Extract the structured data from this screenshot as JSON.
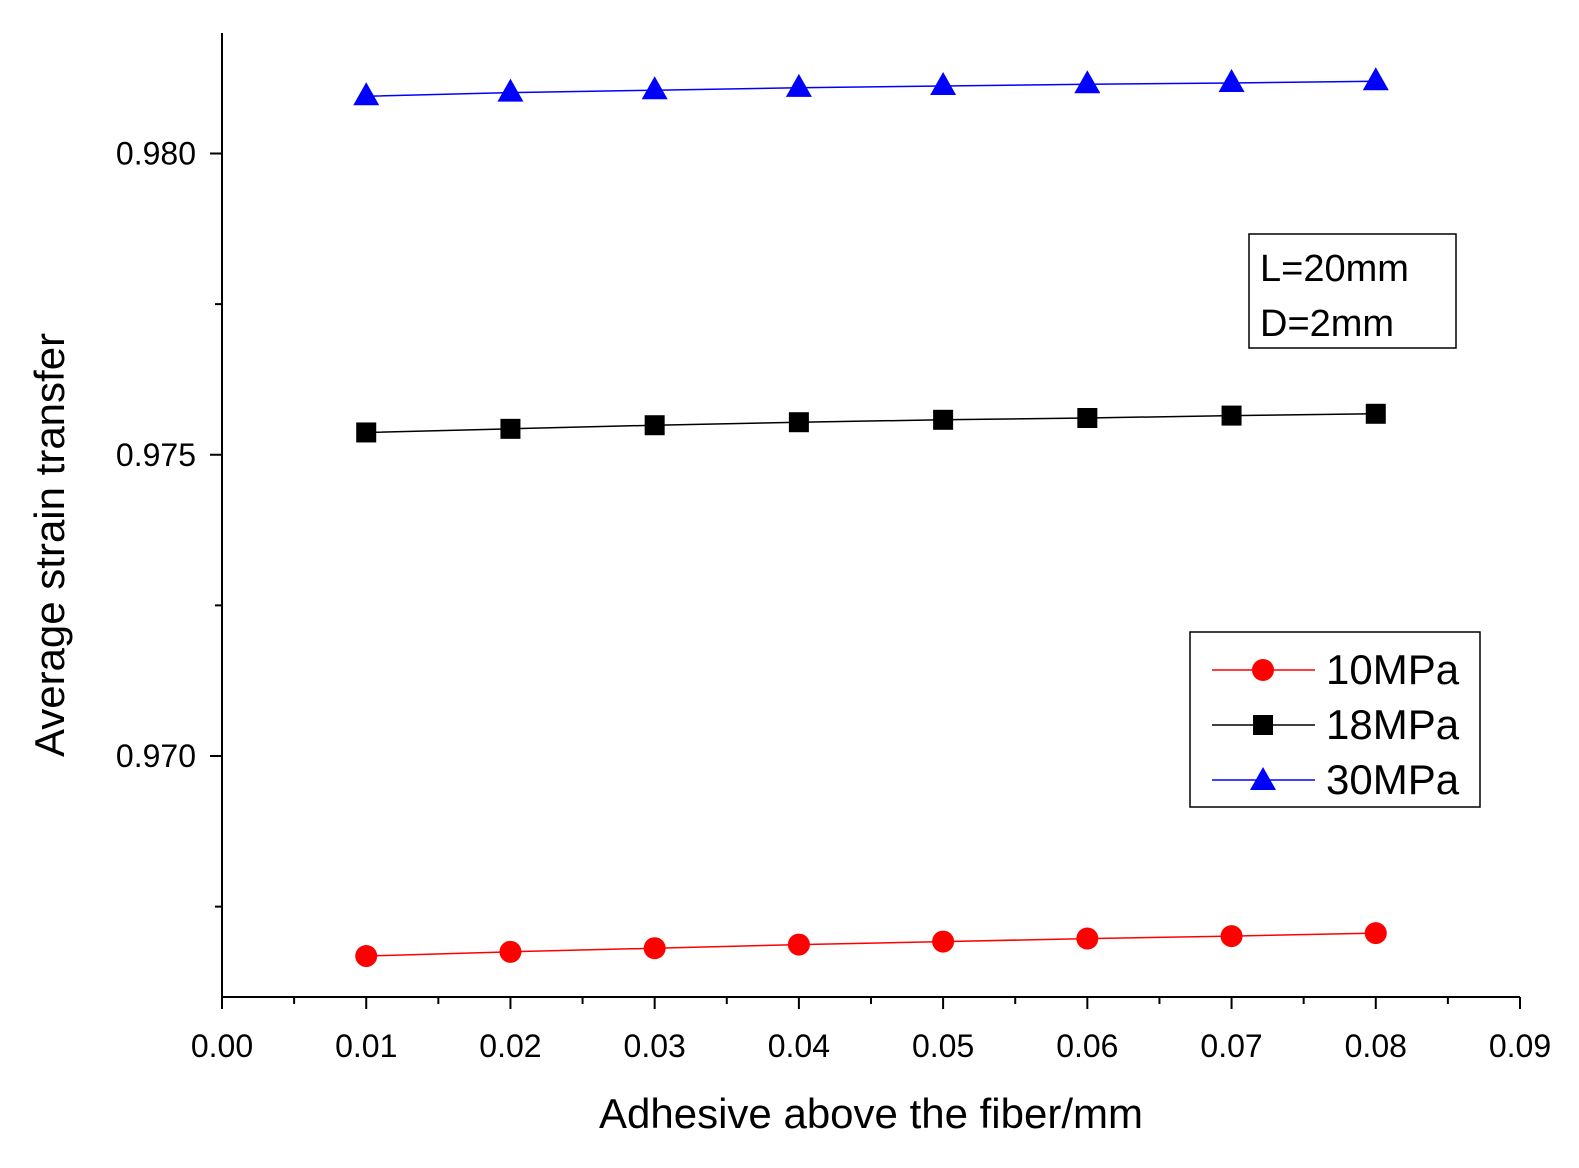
{
  "chart_data": {
    "type": "line",
    "title": "",
    "xlabel": "Adhesive above the fiber/mm",
    "ylabel": "Average strain transfer",
    "xlim": [
      0.0,
      0.09
    ],
    "ylim": [
      0.966,
      0.982
    ],
    "x_ticks": [
      0.0,
      0.01,
      0.02,
      0.03,
      0.04,
      0.05,
      0.06,
      0.07,
      0.08,
      0.09
    ],
    "x_tick_labels": [
      "0.00",
      "0.01",
      "0.02",
      "0.03",
      "0.04",
      "0.05",
      "0.06",
      "0.07",
      "0.08",
      "0.09"
    ],
    "y_ticks": [
      0.97,
      0.975,
      0.98
    ],
    "y_tick_labels": [
      "0.970",
      "0.975",
      "0.980"
    ],
    "y_minor_ticks": [
      0.9675,
      0.9725,
      0.9775
    ],
    "x": [
      0.01,
      0.02,
      0.03,
      0.04,
      0.05,
      0.06,
      0.07,
      0.08
    ],
    "series": [
      {
        "name": "10MPa",
        "color": "#ff0000",
        "marker": "circle",
        "values": [
          0.96668,
          0.96675,
          0.96681,
          0.96687,
          0.96692,
          0.96697,
          0.96701,
          0.96706
        ]
      },
      {
        "name": "18MPa",
        "color": "#000000",
        "marker": "square",
        "values": [
          0.97537,
          0.97543,
          0.97549,
          0.97554,
          0.97558,
          0.97561,
          0.97565,
          0.97568
        ]
      },
      {
        "name": "30MPa",
        "color": "#0000ff",
        "marker": "triangle",
        "values": [
          0.98095,
          0.98101,
          0.98105,
          0.98109,
          0.98112,
          0.98115,
          0.98117,
          0.9812
        ]
      }
    ],
    "legend_position": "right",
    "annotation_lines": [
      "L=20mm",
      "D=2mm"
    ]
  }
}
